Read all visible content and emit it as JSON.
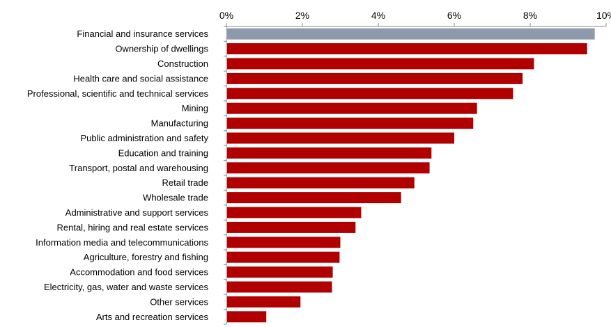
{
  "chart_data": {
    "type": "bar",
    "orientation": "horizontal",
    "title": "",
    "xlabel": "",
    "ylabel": "",
    "x_axis_position": "top",
    "xlim": [
      0,
      10
    ],
    "x_ticks": [
      0,
      2,
      4,
      6,
      8,
      10
    ],
    "x_tick_labels": [
      "0%",
      "2%",
      "4%",
      "6%",
      "8%",
      "10%"
    ],
    "grid": false,
    "legend": "none",
    "categories": [
      "Financial and insurance services",
      "Ownership of dwellings",
      "Construction",
      "Health care and social assistance",
      "Professional, scientific and technical services",
      "Mining",
      "Manufacturing",
      "Public administration and safety",
      "Education and training",
      "Transport, postal and warehousing",
      "Retail trade",
      "Wholesale trade",
      "Administrative and support services",
      "Rental, hiring and real estate services",
      "Information media and telecommunications",
      "Agriculture, forestry and fishing",
      "Accommodation and food services",
      "Electricity, gas, water and waste services",
      "Other services",
      "Arts and recreation services"
    ],
    "values": [
      9.7,
      9.5,
      8.1,
      7.8,
      7.55,
      6.6,
      6.5,
      6.0,
      5.4,
      5.35,
      4.95,
      4.6,
      3.55,
      3.4,
      3.0,
      2.98,
      2.8,
      2.78,
      1.95,
      1.05
    ],
    "colors": {
      "highlight": "#8c9aab",
      "bar": "#b00000",
      "axis": "#888888"
    },
    "highlight_index": 0
  }
}
